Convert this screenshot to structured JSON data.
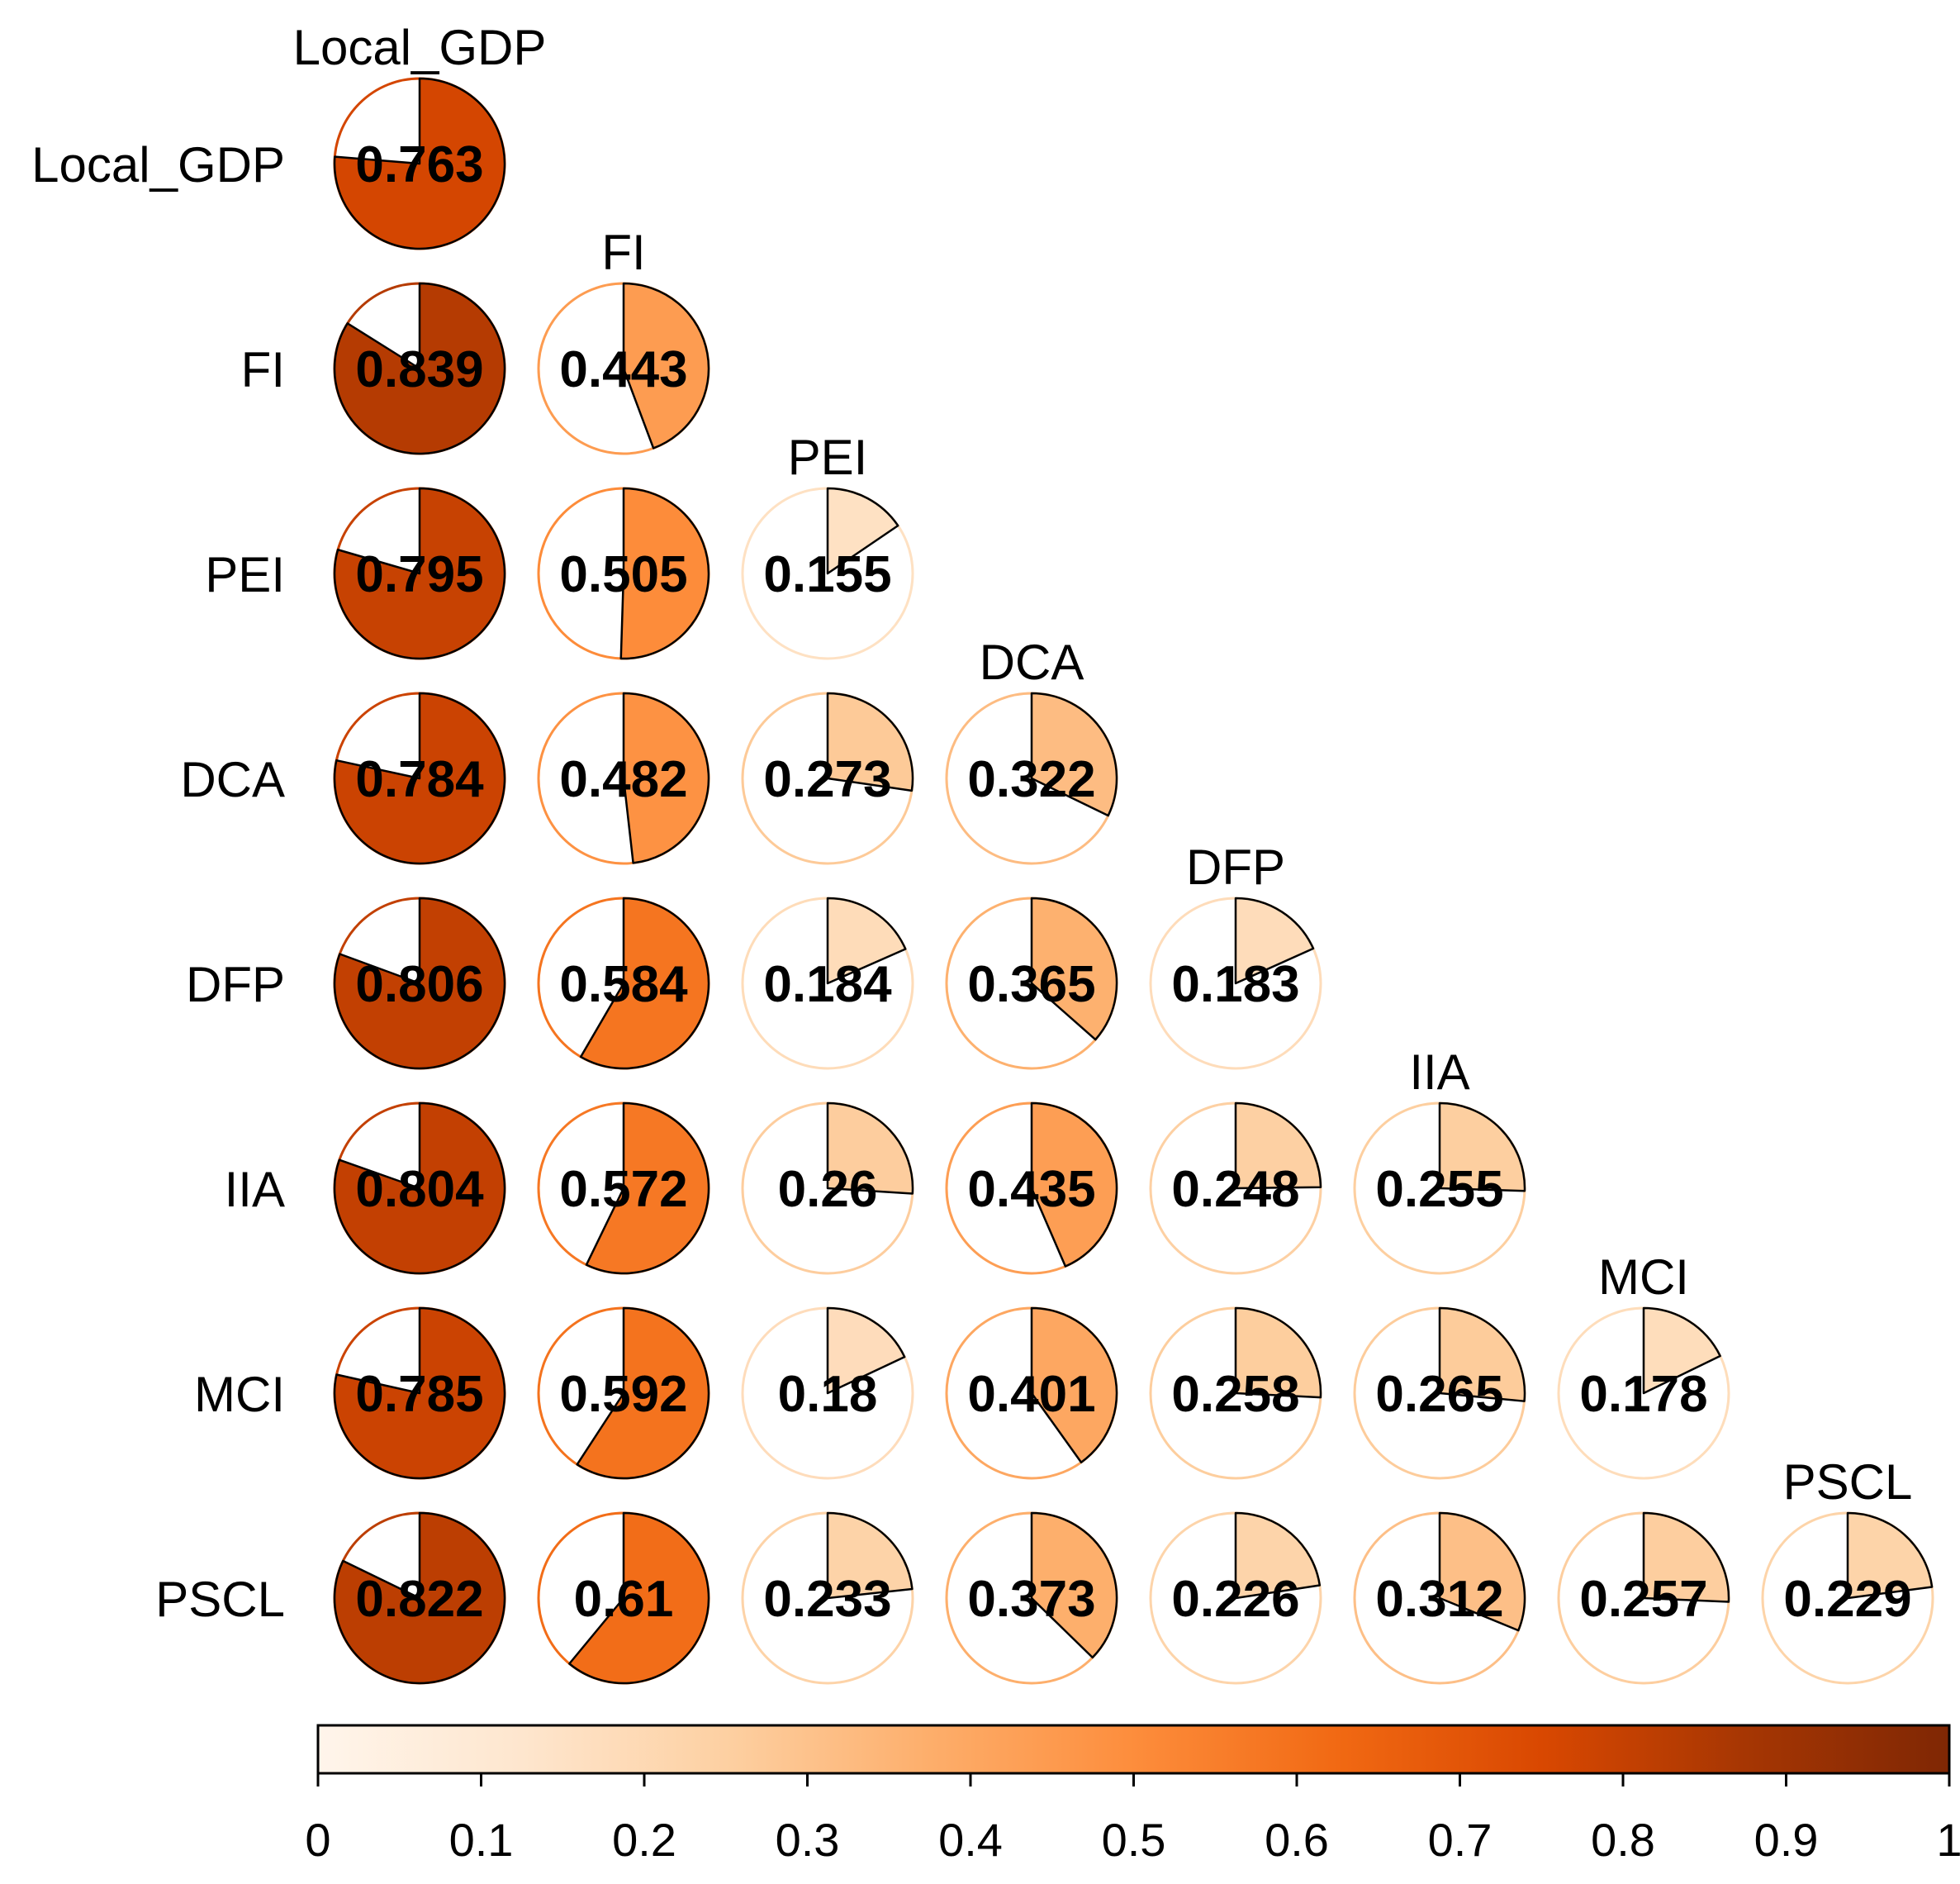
{
  "chart_data": {
    "type": "correlation-pie-matrix",
    "title": "",
    "variables": [
      "Local_GDP",
      "FI",
      "PEI",
      "DCA",
      "DFP",
      "IIA",
      "MCI",
      "PSCL"
    ],
    "values": [
      [
        0.763
      ],
      [
        0.839,
        0.443
      ],
      [
        0.795,
        0.505,
        0.155
      ],
      [
        0.784,
        0.482,
        0.273,
        0.322
      ],
      [
        0.806,
        0.584,
        0.184,
        0.365,
        0.183
      ],
      [
        0.804,
        0.572,
        0.26,
        0.435,
        0.248,
        0.255
      ],
      [
        0.785,
        0.592,
        0.18,
        0.401,
        0.258,
        0.265,
        0.178
      ],
      [
        0.822,
        0.61,
        0.233,
        0.373,
        0.226,
        0.312,
        0.257,
        0.229
      ]
    ],
    "value_labels": [
      [
        "0.763"
      ],
      [
        "0.839",
        "0.443"
      ],
      [
        "0.795",
        "0.505",
        "0.155"
      ],
      [
        "0.784",
        "0.482",
        "0.273",
        "0.322"
      ],
      [
        "0.806",
        "0.584",
        "0.184",
        "0.365",
        "0.183"
      ],
      [
        "0.804",
        "0.572",
        "0.26",
        "0.435",
        "0.248",
        "0.255"
      ],
      [
        "0.785",
        "0.592",
        "0.18",
        "0.401",
        "0.258",
        "0.265",
        "0.178"
      ],
      [
        "0.822",
        "0.61",
        "0.233",
        "0.373",
        "0.226",
        "0.312",
        "0.257",
        "0.229"
      ]
    ],
    "colorbar": {
      "range": [
        0,
        1
      ],
      "ticks": [
        "0",
        "0.1",
        "0.2",
        "0.3",
        "0.4",
        "0.5",
        "0.6",
        "0.7",
        "0.8",
        "0.9",
        "1"
      ],
      "colors": [
        "#fff5eb",
        "#fee6ce",
        "#fdd0a2",
        "#fdae6b",
        "#fd8d3c",
        "#f16913",
        "#d94801",
        "#a63603",
        "#7f2704"
      ]
    }
  }
}
